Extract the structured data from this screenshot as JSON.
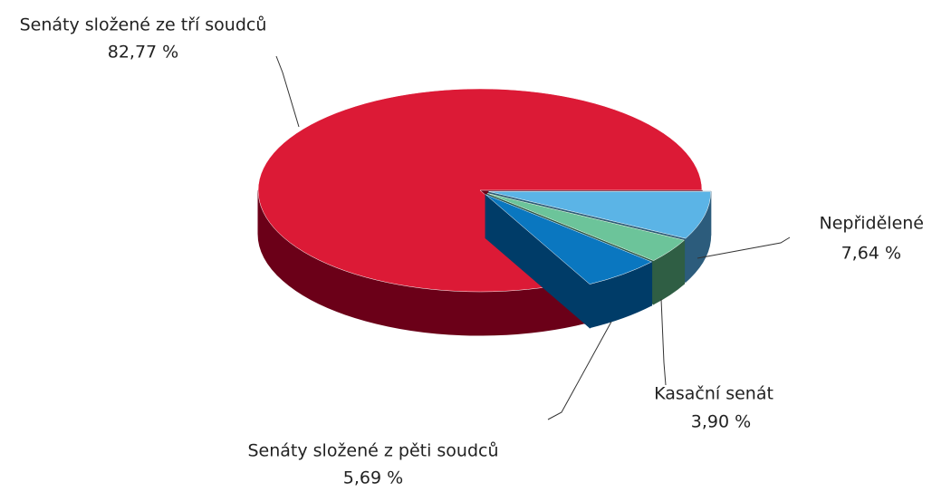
{
  "chart_data": {
    "type": "pie",
    "categories": [
      "Nepřidělené",
      "Kasační senát",
      "Senáty složené z pěti soudců",
      "Senáty složené ze tří soudců"
    ],
    "values": [
      7.64,
      3.9,
      5.69,
      82.77
    ],
    "value_labels": [
      "7,64 %",
      "3,90 %",
      "5,69 %",
      "82,77 %"
    ],
    "colors": [
      "#5bb4e6",
      "#6cc49a",
      "#0a77c0",
      "#dc1a36"
    ],
    "side_colors": [
      "#2c5c7c",
      "#2f5e44",
      "#003c68",
      "#6b0018"
    ]
  }
}
